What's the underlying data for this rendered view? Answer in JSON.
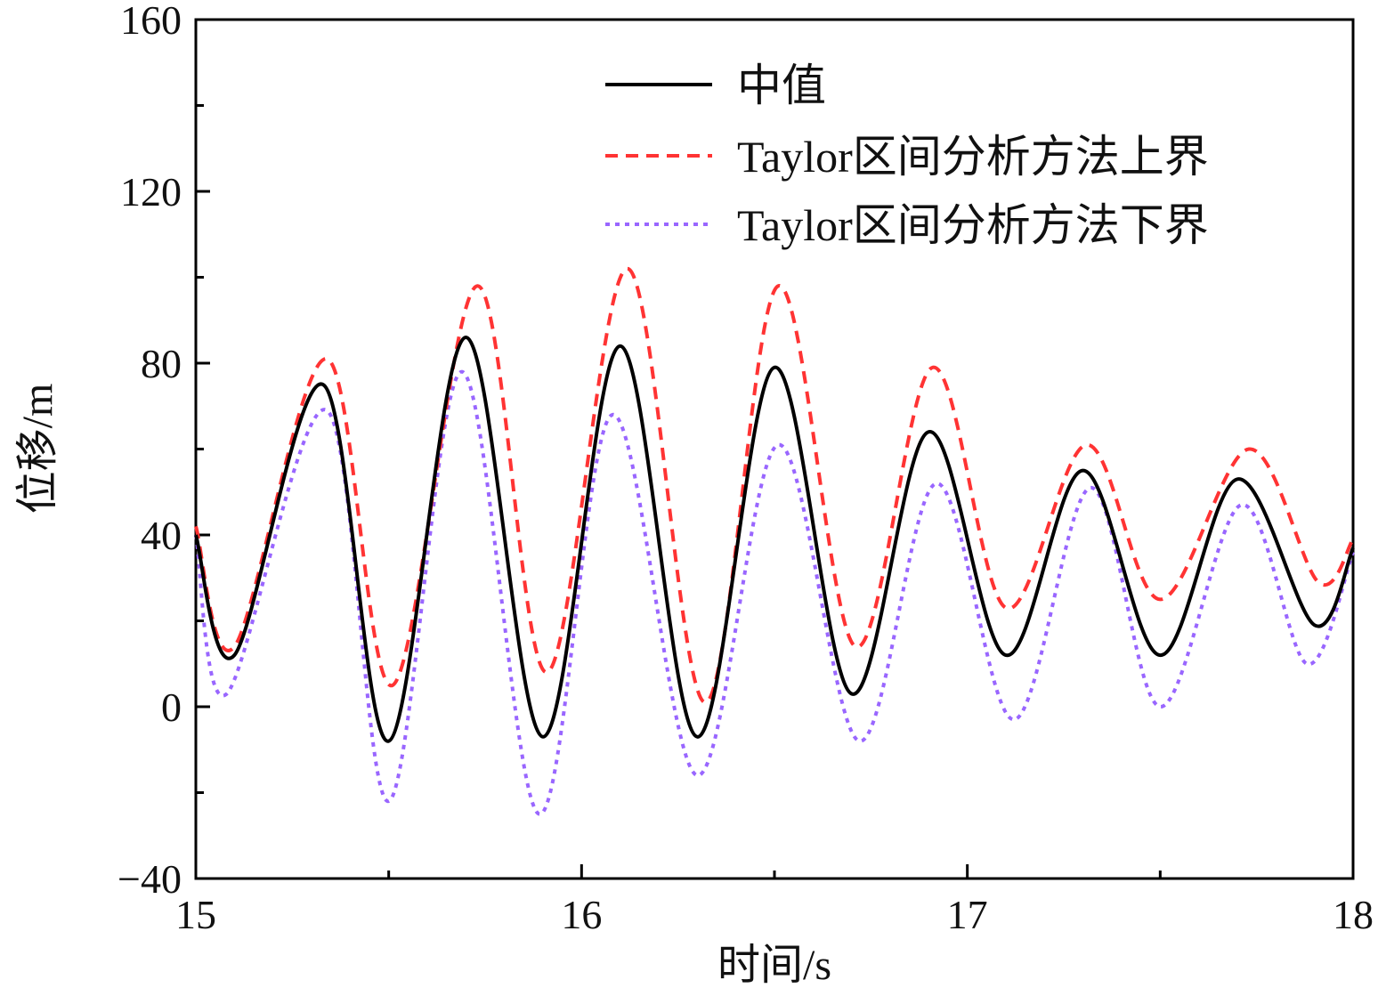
{
  "chart_data": {
    "type": "line",
    "xlabel": "时间/s",
    "ylabel": "位移/m",
    "xlim": [
      15,
      18
    ],
    "ylim": [
      -40,
      160
    ],
    "xticks": [
      15,
      16,
      17,
      18
    ],
    "xtick_labels": [
      "15",
      "16",
      "17",
      "18"
    ],
    "yticks": [
      -40,
      0,
      40,
      80,
      120,
      160
    ],
    "ytick_labels": [
      "−40",
      "0",
      "40",
      "80",
      "120",
      "160"
    ],
    "grid": false,
    "legend_position": "top-right",
    "series": [
      {
        "name": "中值",
        "color": "#000000",
        "style": "solid",
        "x": [
          15.0,
          15.1,
          15.33,
          15.5,
          15.7,
          15.9,
          16.1,
          16.3,
          16.5,
          16.7,
          16.9,
          17.1,
          17.3,
          17.5,
          17.7,
          17.9,
          18.0
        ],
        "y": [
          40,
          12,
          75,
          -8,
          86,
          -7,
          84,
          -7,
          79,
          3,
          64,
          12,
          55,
          12,
          53,
          19,
          37
        ]
      },
      {
        "name": "Taylor区间分析方法上界",
        "color": "#ff3333",
        "style": "dashed",
        "x": [
          15.0,
          15.1,
          15.34,
          15.51,
          15.73,
          15.91,
          16.12,
          16.32,
          16.51,
          16.71,
          16.91,
          17.1,
          17.31,
          17.5,
          17.73,
          17.91,
          18.0
        ],
        "y": [
          42,
          14,
          81,
          5,
          98,
          8,
          102,
          1,
          98,
          14,
          79,
          23,
          61,
          25,
          60,
          29,
          39
        ]
      },
      {
        "name": "Taylor区间分析方法下界",
        "color": "#9966ff",
        "style": "dotted",
        "x": [
          15.0,
          15.08,
          15.34,
          15.5,
          15.69,
          15.89,
          16.08,
          16.3,
          16.51,
          16.72,
          16.92,
          17.12,
          17.32,
          17.5,
          17.71,
          17.88,
          18.0
        ],
        "y": [
          40,
          3,
          69,
          -22,
          78,
          -25,
          68,
          -16,
          61,
          -8,
          52,
          -3,
          51,
          0,
          47,
          10,
          36
        ]
      }
    ]
  }
}
